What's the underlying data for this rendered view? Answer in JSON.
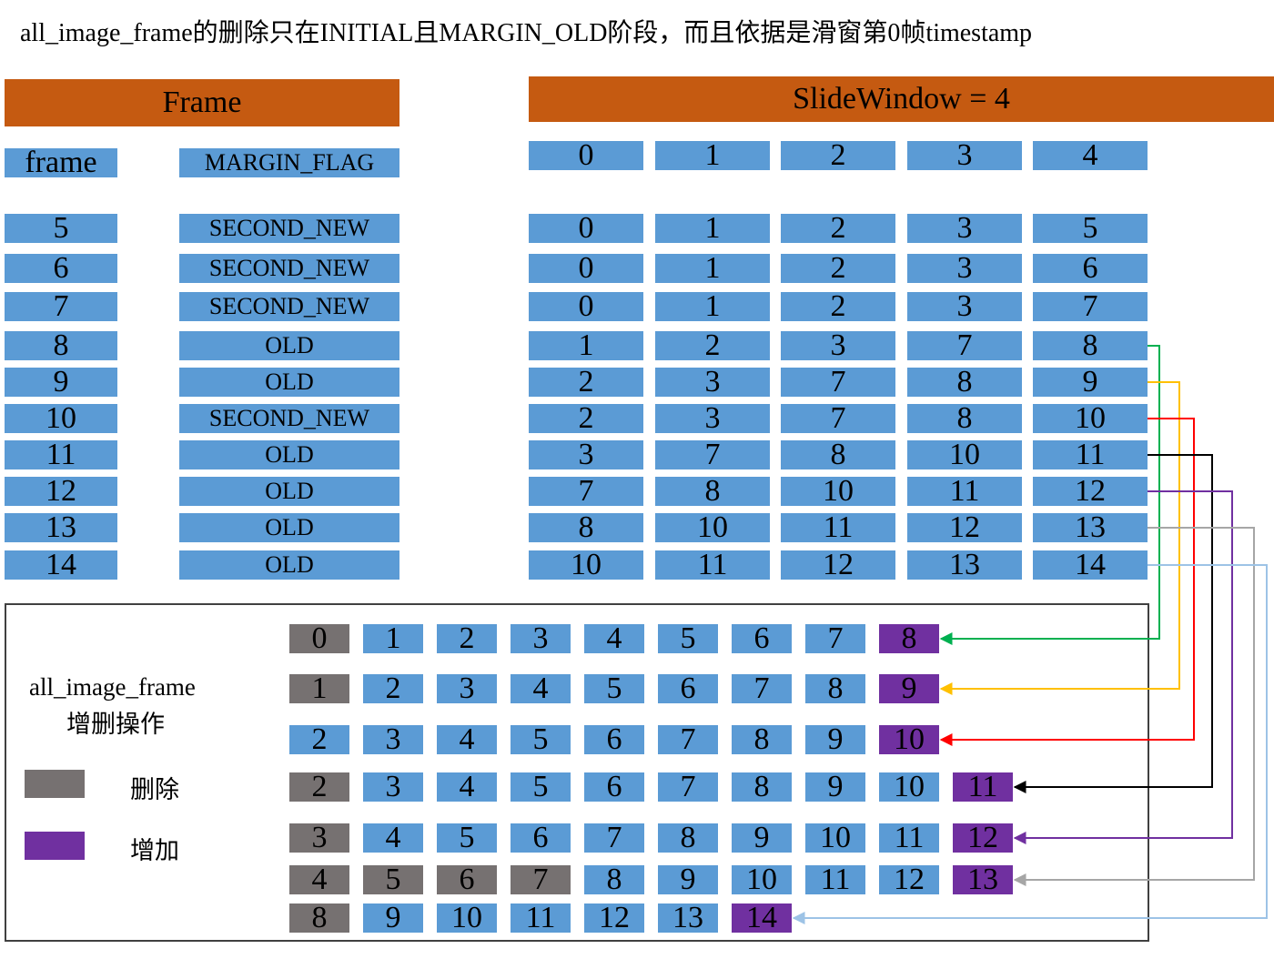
{
  "title": "all_image_frame的删除只在INITIAL且MARGIN_OLD阶段，而且依据是滑窗第0帧timestamp",
  "frame_header": "Frame",
  "window_header": "SlideWindow = 4",
  "frame_col_label": "frame",
  "flag_col_label": "MARGIN_FLAG",
  "window_index_labels": [
    "0",
    "1",
    "2",
    "3",
    "4"
  ],
  "frames": [
    {
      "frame": "5",
      "flag": "SECOND_NEW",
      "window": [
        "0",
        "1",
        "2",
        "3",
        "5"
      ]
    },
    {
      "frame": "6",
      "flag": "SECOND_NEW",
      "window": [
        "0",
        "1",
        "2",
        "3",
        "6"
      ]
    },
    {
      "frame": "7",
      "flag": "SECOND_NEW",
      "window": [
        "0",
        "1",
        "2",
        "3",
        "7"
      ]
    },
    {
      "frame": "8",
      "flag": "OLD",
      "window": [
        "1",
        "2",
        "3",
        "7",
        "8"
      ]
    },
    {
      "frame": "9",
      "flag": "OLD",
      "window": [
        "2",
        "3",
        "7",
        "8",
        "9"
      ]
    },
    {
      "frame": "10",
      "flag": "SECOND_NEW",
      "window": [
        "2",
        "3",
        "7",
        "8",
        "10"
      ]
    },
    {
      "frame": "11",
      "flag": "OLD",
      "window": [
        "3",
        "7",
        "8",
        "10",
        "11"
      ]
    },
    {
      "frame": "12",
      "flag": "OLD",
      "window": [
        "7",
        "8",
        "10",
        "11",
        "12"
      ]
    },
    {
      "frame": "13",
      "flag": "OLD",
      "window": [
        "8",
        "10",
        "11",
        "12",
        "13"
      ]
    },
    {
      "frame": "14",
      "flag": "OLD",
      "window": [
        "10",
        "11",
        "12",
        "13",
        "14"
      ]
    }
  ],
  "panel": {
    "label_line1": "all_image_frame",
    "label_line2": "增删操作",
    "legend_delete": "删除",
    "legend_add": "增加",
    "rows": [
      [
        {
          "v": "0",
          "s": "del"
        },
        {
          "v": "1"
        },
        {
          "v": "2"
        },
        {
          "v": "3"
        },
        {
          "v": "4"
        },
        {
          "v": "5"
        },
        {
          "v": "6"
        },
        {
          "v": "7"
        },
        {
          "v": "8",
          "s": "add"
        }
      ],
      [
        {
          "v": "1",
          "s": "del"
        },
        {
          "v": "2"
        },
        {
          "v": "3"
        },
        {
          "v": "4"
        },
        {
          "v": "5"
        },
        {
          "v": "6"
        },
        {
          "v": "7"
        },
        {
          "v": "8"
        },
        {
          "v": "9",
          "s": "add"
        }
      ],
      [
        {
          "v": "2"
        },
        {
          "v": "3"
        },
        {
          "v": "4"
        },
        {
          "v": "5"
        },
        {
          "v": "6"
        },
        {
          "v": "7"
        },
        {
          "v": "8"
        },
        {
          "v": "9"
        },
        {
          "v": "10",
          "s": "add"
        }
      ],
      [
        {
          "v": "2",
          "s": "del"
        },
        {
          "v": "3"
        },
        {
          "v": "4"
        },
        {
          "v": "5"
        },
        {
          "v": "6"
        },
        {
          "v": "7"
        },
        {
          "v": "8"
        },
        {
          "v": "9"
        },
        {
          "v": "10"
        },
        {
          "v": "11",
          "s": "add"
        }
      ],
      [
        {
          "v": "3",
          "s": "del"
        },
        {
          "v": "4"
        },
        {
          "v": "5"
        },
        {
          "v": "6"
        },
        {
          "v": "7"
        },
        {
          "v": "8"
        },
        {
          "v": "9"
        },
        {
          "v": "10"
        },
        {
          "v": "11"
        },
        {
          "v": "12",
          "s": "add"
        }
      ],
      [
        {
          "v": "4",
          "s": "del"
        },
        {
          "v": "5",
          "s": "del"
        },
        {
          "v": "6",
          "s": "del"
        },
        {
          "v": "7",
          "s": "del"
        },
        {
          "v": "8"
        },
        {
          "v": "9"
        },
        {
          "v": "10"
        },
        {
          "v": "11"
        },
        {
          "v": "12"
        },
        {
          "v": "13",
          "s": "add"
        }
      ],
      [
        {
          "v": "8",
          "s": "del"
        },
        {
          "v": "9"
        },
        {
          "v": "10"
        },
        {
          "v": "11"
        },
        {
          "v": "12"
        },
        {
          "v": "13"
        },
        {
          "v": "14",
          "s": "add"
        }
      ]
    ]
  },
  "colors": {
    "header": "#c55a11",
    "cell": "#5b9bd5",
    "delete": "#767171",
    "add": "#7030a0",
    "arrows": [
      "#00b050",
      "#ffc000",
      "#ff0000",
      "#000000",
      "#7030a0",
      "#a6a6a6",
      "#9dc3e6"
    ]
  }
}
